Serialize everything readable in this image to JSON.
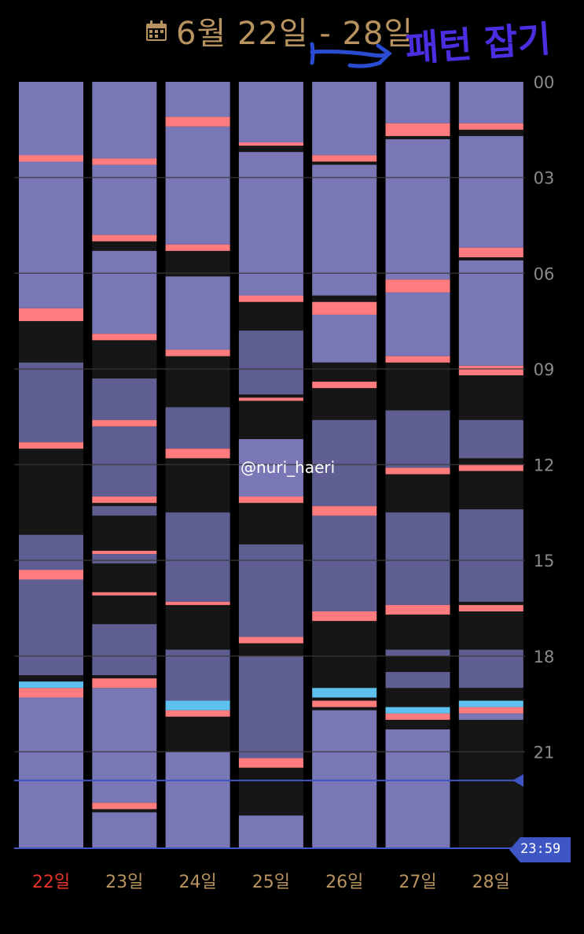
{
  "header": {
    "title": "6월 22일 - 28일",
    "annotation": "패턴 잡기"
  },
  "watermark": "@nuri_haeri",
  "now_label": "23:59",
  "colors": {
    "background": "#000000",
    "sleep_light": "#7977b6",
    "sleep_dark": "#5f5e93",
    "awake": "#161616",
    "feeding": "#ff7b7d",
    "diaper": "#5dc0ee",
    "grid": "#3a3a3a",
    "day_label": "#b8935f",
    "today_label": "#e8332c",
    "hour_label": "#8a8a8a",
    "now_line": "#3d56c4",
    "annotation": "#4a2ee0"
  },
  "chart_data": {
    "type": "timeline",
    "title": "6월 22일 - 28일",
    "unit": "hour of day",
    "ylim": [
      0,
      24
    ],
    "y_ticks": [
      "00",
      "03",
      "06",
      "09",
      "12",
      "15",
      "18",
      "21"
    ],
    "y_tick_values": [
      0,
      3,
      6,
      9,
      12,
      15,
      18,
      21
    ],
    "now_marker_hour": 21.9,
    "days": [
      {
        "label": "22일",
        "today": true,
        "sleep": [
          [
            0,
            7.1,
            "light"
          ],
          [
            7.5,
            8.8,
            "awake"
          ],
          [
            8.8,
            11.3,
            "dark"
          ],
          [
            11.5,
            14.2,
            "awake"
          ],
          [
            14.2,
            18.6,
            "dark"
          ],
          [
            19.3,
            24,
            "light"
          ]
        ],
        "feeding": [
          [
            2.3,
            2.5
          ],
          [
            7.1,
            7.5
          ],
          [
            11.3,
            11.5
          ],
          [
            15.3,
            15.6
          ],
          [
            19.0,
            19.3
          ]
        ],
        "diaper": [
          [
            18.8,
            19.0
          ]
        ]
      },
      {
        "label": "23일",
        "today": false,
        "sleep": [
          [
            0,
            2.4,
            "light"
          ],
          [
            2.6,
            4.8,
            "light"
          ],
          [
            4.8,
            5.2,
            "awake"
          ],
          [
            5.3,
            7.9,
            "light"
          ],
          [
            8.1,
            9.3,
            "awake"
          ],
          [
            9.3,
            10.6,
            "dark"
          ],
          [
            10.8,
            13.0,
            "dark"
          ],
          [
            13.2,
            13.3,
            "awake"
          ],
          [
            13.3,
            13.6,
            "dark"
          ],
          [
            13.6,
            14.7,
            "awake"
          ],
          [
            14.8,
            15.1,
            "dark"
          ],
          [
            15.1,
            16.0,
            "awake"
          ],
          [
            16.1,
            17.0,
            "awake"
          ],
          [
            17.0,
            18.6,
            "dark"
          ],
          [
            19.0,
            22.6,
            "light"
          ],
          [
            22.9,
            24,
            "light"
          ]
        ],
        "feeding": [
          [
            2.4,
            2.6
          ],
          [
            4.8,
            5.0
          ],
          [
            7.9,
            8.1
          ],
          [
            10.6,
            10.8
          ],
          [
            13.0,
            13.2
          ],
          [
            14.7,
            14.8
          ],
          [
            16.0,
            16.1
          ],
          [
            18.7,
            19.0
          ],
          [
            22.6,
            22.8
          ]
        ],
        "diaper": []
      },
      {
        "label": "24일",
        "today": false,
        "sleep": [
          [
            0,
            1.1,
            "light"
          ],
          [
            1.4,
            5.1,
            "light"
          ],
          [
            5.3,
            6.0,
            "awake"
          ],
          [
            6.1,
            8.4,
            "light"
          ],
          [
            8.6,
            10.2,
            "awake"
          ],
          [
            10.2,
            11.5,
            "dark"
          ],
          [
            11.8,
            13.5,
            "awake"
          ],
          [
            13.5,
            16.3,
            "dark"
          ],
          [
            16.4,
            17.8,
            "awake"
          ],
          [
            17.8,
            19.4,
            "dark"
          ],
          [
            19.8,
            21.0,
            "awake"
          ],
          [
            21.0,
            24,
            "light"
          ]
        ],
        "feeding": [
          [
            1.1,
            1.4
          ],
          [
            5.1,
            5.3
          ],
          [
            8.4,
            8.6
          ],
          [
            11.5,
            11.8
          ],
          [
            16.3,
            16.4
          ],
          [
            19.7,
            19.9
          ]
        ],
        "diaper": [
          [
            19.4,
            19.7
          ]
        ]
      },
      {
        "label": "25일",
        "today": false,
        "sleep": [
          [
            0,
            2.0,
            "light"
          ],
          [
            2.2,
            6.8,
            "light"
          ],
          [
            6.8,
            7.8,
            "awake"
          ],
          [
            7.8,
            9.8,
            "dark"
          ],
          [
            10.0,
            11.2,
            "awake"
          ],
          [
            11.2,
            13.0,
            "light"
          ],
          [
            13.2,
            14.5,
            "awake"
          ],
          [
            14.5,
            17.4,
            "dark"
          ],
          [
            17.6,
            18.0,
            "awake"
          ],
          [
            18.0,
            21.2,
            "dark"
          ],
          [
            21.5,
            23.0,
            "awake"
          ],
          [
            23.0,
            24,
            "light"
          ]
        ],
        "feeding": [
          [
            1.9,
            2.0
          ],
          [
            6.7,
            6.9
          ],
          [
            9.9,
            10.0
          ],
          [
            13.0,
            13.2
          ],
          [
            17.4,
            17.6
          ],
          [
            21.2,
            21.5
          ]
        ],
        "diaper": []
      },
      {
        "label": "26일",
        "today": false,
        "sleep": [
          [
            0,
            2.3,
            "light"
          ],
          [
            2.6,
            6.7,
            "light"
          ],
          [
            6.7,
            6.9,
            "awake"
          ],
          [
            7.3,
            8.8,
            "light"
          ],
          [
            8.8,
            9.4,
            "awake"
          ],
          [
            9.6,
            10.6,
            "awake"
          ],
          [
            10.6,
            13.3,
            "dark"
          ],
          [
            13.5,
            13.6,
            "awake"
          ],
          [
            13.6,
            16.6,
            "dark"
          ],
          [
            16.6,
            16.8,
            "awake"
          ],
          [
            16.8,
            18.9,
            "awake"
          ],
          [
            19.7,
            24,
            "light"
          ]
        ],
        "feeding": [
          [
            2.3,
            2.5
          ],
          [
            6.9,
            7.3
          ],
          [
            9.4,
            9.6
          ],
          [
            13.3,
            13.6
          ],
          [
            16.6,
            16.9
          ],
          [
            19.4,
            19.6
          ]
        ],
        "diaper": [
          [
            19.0,
            19.3
          ]
        ]
      },
      {
        "label": "27일",
        "today": false,
        "sleep": [
          [
            0,
            1.3,
            "light"
          ],
          [
            1.8,
            6.2,
            "light"
          ],
          [
            6.6,
            8.6,
            "light"
          ],
          [
            8.8,
            10.3,
            "awake"
          ],
          [
            10.3,
            12.1,
            "dark"
          ],
          [
            12.3,
            13.5,
            "awake"
          ],
          [
            13.5,
            16.4,
            "dark"
          ],
          [
            16.8,
            17.8,
            "awake"
          ],
          [
            17.8,
            18.0,
            "dark"
          ],
          [
            18.1,
            18.5,
            "awake"
          ],
          [
            18.5,
            19.0,
            "dark"
          ],
          [
            19.1,
            19.6,
            "awake"
          ],
          [
            20.3,
            24,
            "light"
          ]
        ],
        "feeding": [
          [
            1.3,
            1.7
          ],
          [
            6.2,
            6.6
          ],
          [
            8.6,
            8.8
          ],
          [
            12.1,
            12.3
          ],
          [
            16.4,
            16.7
          ],
          [
            19.8,
            20.0
          ]
        ],
        "diaper": [
          [
            19.6,
            19.8
          ]
        ]
      },
      {
        "label": "28일",
        "today": false,
        "sleep": [
          [
            0,
            1.3,
            "light"
          ],
          [
            1.7,
            5.2,
            "light"
          ],
          [
            5.6,
            8.9,
            "light"
          ],
          [
            9.2,
            10.6,
            "awake"
          ],
          [
            10.6,
            11.8,
            "dark"
          ],
          [
            12.0,
            13.4,
            "awake"
          ],
          [
            13.4,
            16.3,
            "dark"
          ],
          [
            16.5,
            17.8,
            "awake"
          ],
          [
            17.8,
            19.0,
            "dark"
          ],
          [
            19.0,
            19.2,
            "awake"
          ],
          [
            19.8,
            20.0,
            "light"
          ],
          [
            20.2,
            24,
            "awake"
          ]
        ],
        "feeding": [
          [
            1.3,
            1.5
          ],
          [
            5.2,
            5.5
          ],
          [
            8.9,
            9.2
          ],
          [
            12.0,
            12.2
          ],
          [
            16.4,
            16.6
          ],
          [
            19.6,
            19.8
          ]
        ],
        "diaper": [
          [
            19.4,
            19.6
          ]
        ]
      }
    ]
  }
}
